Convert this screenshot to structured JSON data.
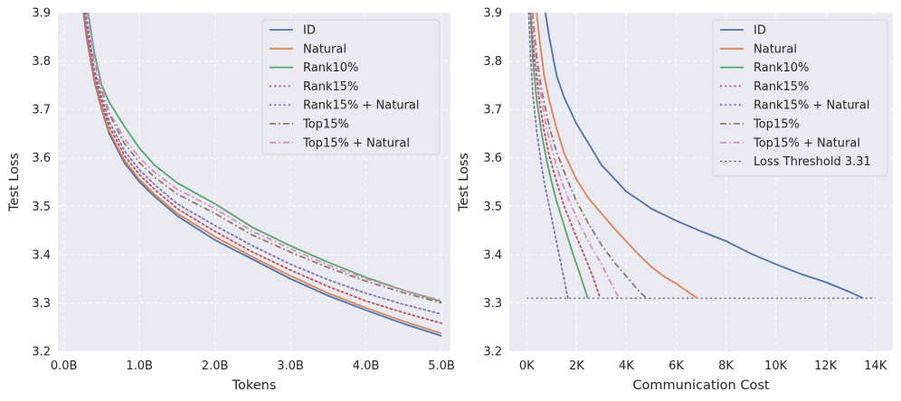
{
  "chart_data": [
    {
      "type": "line",
      "xlabel": "Tokens",
      "ylabel": "Test Loss",
      "xlim": [
        -0.08,
        5.12
      ],
      "ylim": [
        3.2,
        3.9
      ],
      "xticks": [
        0,
        1,
        2,
        3,
        4,
        5
      ],
      "xtick_labels": [
        "0.0B",
        "1.0B",
        "2.0B",
        "3.0B",
        "4.0B",
        "5.0B"
      ],
      "yticks": [
        3.2,
        3.3,
        3.4,
        3.5,
        3.6,
        3.7,
        3.8,
        3.9
      ],
      "ytick_labels": [
        "3.2",
        "3.3",
        "3.4",
        "3.5",
        "3.6",
        "3.7",
        "3.8",
        "3.9"
      ],
      "grid": true,
      "legend_position": "top-right",
      "series": [
        {
          "name": "ID",
          "color": "#4c72b0",
          "dash": "solid",
          "x": [
            0.26,
            0.3,
            0.4,
            0.5,
            0.6,
            0.8,
            1.0,
            1.2,
            1.5,
            2.0,
            2.5,
            3.0,
            3.5,
            4.0,
            4.5,
            5.0
          ],
          "y": [
            3.9,
            3.85,
            3.76,
            3.7,
            3.65,
            3.59,
            3.55,
            3.52,
            3.48,
            3.43,
            3.39,
            3.35,
            3.315,
            3.285,
            3.257,
            3.232
          ]
        },
        {
          "name": "Natural",
          "color": "#dd8452",
          "dash": "solid",
          "x": [
            0.27,
            0.3,
            0.4,
            0.5,
            0.6,
            0.8,
            1.0,
            1.2,
            1.5,
            2.0,
            2.5,
            3.0,
            3.5,
            4.0,
            4.5,
            5.0
          ],
          "y": [
            3.9,
            3.86,
            3.765,
            3.705,
            3.655,
            3.595,
            3.555,
            3.525,
            3.485,
            3.437,
            3.395,
            3.356,
            3.32,
            3.29,
            3.262,
            3.237
          ]
        },
        {
          "name": "Rank10%",
          "color": "#55a868",
          "dash": "solid",
          "x": [
            0.32,
            0.4,
            0.5,
            0.6,
            0.8,
            1.0,
            1.2,
            1.5,
            2.0,
            2.5,
            3.0,
            3.5,
            4.0,
            4.5,
            5.0
          ],
          "y": [
            3.9,
            3.82,
            3.75,
            3.715,
            3.665,
            3.62,
            3.585,
            3.548,
            3.505,
            3.456,
            3.418,
            3.384,
            3.353,
            3.326,
            3.303
          ]
        },
        {
          "name": "Rank15%",
          "color": "#c44e52",
          "dash": "dotted",
          "x": [
            0.28,
            0.3,
            0.4,
            0.5,
            0.6,
            0.8,
            1.0,
            1.2,
            1.5,
            2.0,
            2.5,
            3.0,
            3.5,
            4.0,
            4.5,
            5.0
          ],
          "y": [
            3.9,
            3.87,
            3.775,
            3.715,
            3.665,
            3.605,
            3.565,
            3.535,
            3.495,
            3.448,
            3.405,
            3.368,
            3.334,
            3.304,
            3.28,
            3.258
          ]
        },
        {
          "name": "Rank15% + Natural",
          "color": "#8172b3",
          "dash": "dotted",
          "x": [
            0.29,
            0.3,
            0.4,
            0.5,
            0.6,
            0.8,
            1.0,
            1.2,
            1.5,
            2.0,
            2.5,
            3.0,
            3.5,
            4.0,
            4.5,
            5.0
          ],
          "y": [
            3.9,
            3.885,
            3.785,
            3.725,
            3.675,
            3.615,
            3.575,
            3.545,
            3.505,
            3.46,
            3.418,
            3.38,
            3.348,
            3.32,
            3.297,
            3.277
          ]
        },
        {
          "name": "Top15%",
          "color": "#937860",
          "dash": "dashdot",
          "x": [
            0.31,
            0.4,
            0.5,
            0.6,
            0.8,
            1.0,
            1.2,
            1.5,
            2.0,
            2.5,
            3.0,
            3.5,
            4.0,
            4.5,
            5.0
          ],
          "y": [
            3.9,
            3.805,
            3.74,
            3.69,
            3.63,
            3.59,
            3.56,
            3.525,
            3.485,
            3.44,
            3.405,
            3.373,
            3.345,
            3.321,
            3.3
          ]
        },
        {
          "name": "Top15% + Natural",
          "color": "#da8bc3",
          "dash": "dashdot",
          "x": [
            0.31,
            0.4,
            0.5,
            0.6,
            0.8,
            1.0,
            1.2,
            1.5,
            2.0,
            2.5,
            3.0,
            3.5,
            4.0,
            4.5,
            5.0
          ],
          "y": [
            3.9,
            3.81,
            3.745,
            3.695,
            3.64,
            3.6,
            3.57,
            3.535,
            3.495,
            3.448,
            3.412,
            3.378,
            3.35,
            3.326,
            3.305
          ]
        }
      ]
    },
    {
      "type": "line",
      "xlabel": "Communication Cost",
      "ylabel": "Test Loss",
      "xlim": [
        -700,
        14700
      ],
      "ylim": [
        3.2,
        3.9
      ],
      "xticks": [
        0,
        2000,
        4000,
        6000,
        8000,
        10000,
        12000,
        14000
      ],
      "xtick_labels": [
        "0K",
        "2K",
        "4K",
        "6K",
        "8K",
        "10K",
        "12K",
        "14K"
      ],
      "yticks": [
        3.2,
        3.3,
        3.4,
        3.5,
        3.6,
        3.7,
        3.8,
        3.9
      ],
      "ytick_labels": [
        "3.2",
        "3.3",
        "3.4",
        "3.5",
        "3.6",
        "3.7",
        "3.8",
        "3.9"
      ],
      "grid": true,
      "legend_position": "top-right",
      "threshold": {
        "name": "Loss Threshold 3.31",
        "y": 3.31,
        "x_range": [
          0,
          14000
        ],
        "color": "#333333",
        "dash": "dotted"
      },
      "series": [
        {
          "name": "ID",
          "color": "#4c72b0",
          "dash": "solid",
          "x": [
            750,
            900,
            1200,
            1500,
            2000,
            2500,
            3000,
            3500,
            4000,
            4500,
            5000,
            6000,
            7000,
            8000,
            9000,
            10000,
            11000,
            12000,
            13000,
            13500
          ],
          "y": [
            3.9,
            3.85,
            3.77,
            3.725,
            3.67,
            3.628,
            3.585,
            3.558,
            3.53,
            3.513,
            3.495,
            3.47,
            3.448,
            3.428,
            3.402,
            3.38,
            3.36,
            3.343,
            3.322,
            3.31
          ]
        },
        {
          "name": "Natural",
          "color": "#dd8452",
          "dash": "solid",
          "x": [
            400,
            500,
            700,
            900,
            1200,
            1500,
            2000,
            2500,
            3000,
            3500,
            4000,
            4500,
            5000,
            5500,
            6000,
            6500,
            6850
          ],
          "y": [
            3.9,
            3.85,
            3.77,
            3.72,
            3.66,
            3.61,
            3.555,
            3.515,
            3.485,
            3.455,
            3.427,
            3.4,
            3.375,
            3.355,
            3.34,
            3.322,
            3.31
          ]
        },
        {
          "name": "Rank10%",
          "color": "#55a868",
          "dash": "solid",
          "x": [
            150,
            250,
            400,
            600,
            800,
            1000,
            1200,
            1500,
            1800,
            2100,
            2450
          ],
          "y": [
            3.9,
            3.8,
            3.72,
            3.65,
            3.595,
            3.55,
            3.51,
            3.46,
            3.41,
            3.365,
            3.31
          ]
        },
        {
          "name": "Rank15%",
          "color": "#c44e52",
          "dash": "dotted",
          "x": [
            180,
            300,
            500,
            700,
            900,
            1200,
            1500,
            1900,
            2300,
            2650,
            2950
          ],
          "y": [
            3.9,
            3.81,
            3.72,
            3.655,
            3.605,
            3.55,
            3.5,
            3.448,
            3.4,
            3.355,
            3.31
          ]
        },
        {
          "name": "Rank15% + Natural",
          "color": "#8172b3",
          "dash": "dotted",
          "x": [
            80,
            150,
            250,
            400,
            550,
            700,
            900,
            1100,
            1300,
            1500,
            1650
          ],
          "y": [
            3.9,
            3.81,
            3.73,
            3.655,
            3.6,
            3.55,
            3.5,
            3.45,
            3.4,
            3.35,
            3.31
          ]
        },
        {
          "name": "Top15%",
          "color": "#937860",
          "dash": "dashdot",
          "x": [
            230,
            400,
            600,
            900,
            1200,
            1600,
            2000,
            2500,
            3000,
            3500,
            4000,
            4500,
            4800
          ],
          "y": [
            3.9,
            3.81,
            3.74,
            3.665,
            3.612,
            3.558,
            3.51,
            3.462,
            3.42,
            3.385,
            3.355,
            3.325,
            3.31
          ]
        },
        {
          "name": "Top15% + Natural",
          "color": "#da8bc3",
          "dash": "dashdot",
          "x": [
            200,
            350,
            550,
            800,
            1100,
            1400,
            1800,
            2200,
            2600,
            3000,
            3400,
            3700
          ],
          "y": [
            3.9,
            3.81,
            3.735,
            3.66,
            3.6,
            3.55,
            3.5,
            3.455,
            3.415,
            3.38,
            3.34,
            3.31
          ]
        }
      ]
    }
  ]
}
